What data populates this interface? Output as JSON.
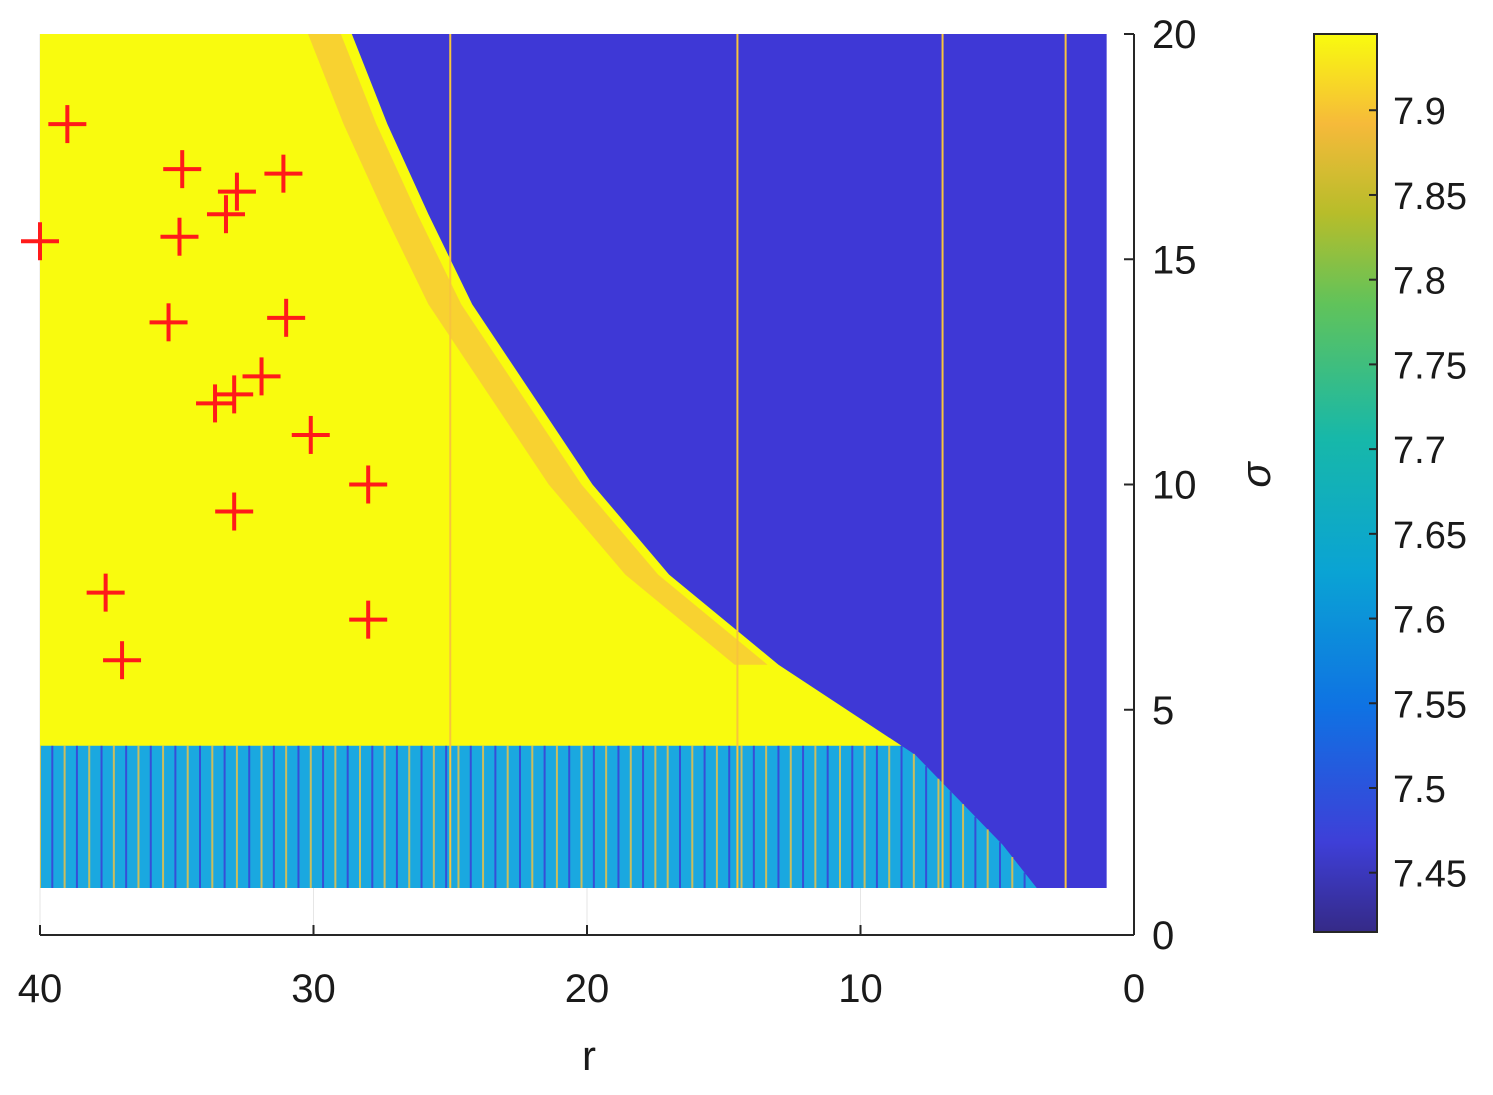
{
  "chart_data": {
    "type": "heatmap",
    "title": "",
    "xlabel": "r",
    "ylabel": "σ",
    "xlim": [
      40,
      0
    ],
    "ylim": [
      0,
      20
    ],
    "x_reversed": true,
    "y_axis_side": "right",
    "x_ticks": [
      40,
      30,
      20,
      10,
      0
    ],
    "y_ticks": [
      0,
      5,
      10,
      15,
      20
    ],
    "data_extent": {
      "r": [
        1,
        40
      ],
      "sigma": [
        1,
        20
      ]
    },
    "colormap": "parula",
    "colorbar": {
      "range": [
        7.415,
        7.945
      ],
      "ticks": [
        "7.45",
        "7.5",
        "7.55",
        "7.6",
        "7.65",
        "7.7",
        "7.75",
        "7.8",
        "7.85",
        "7.9"
      ],
      "position": "right"
    },
    "regions": [
      {
        "name": "high",
        "value": 7.94,
        "description": "yellow region, r large and σ above lower boundary"
      },
      {
        "name": "low",
        "value": 7.43,
        "description": "blue region, right of boundary"
      },
      {
        "name": "transition",
        "value": 7.6,
        "description": "striped band along boundary and for σ below ~4.2"
      }
    ],
    "boundary_curve": [
      {
        "sigma": 20,
        "r": 28.6
      },
      {
        "sigma": 18,
        "r": 27.3
      },
      {
        "sigma": 16,
        "r": 25.8
      },
      {
        "sigma": 14,
        "r": 24.2
      },
      {
        "sigma": 12,
        "r": 22.0
      },
      {
        "sigma": 10,
        "r": 19.8
      },
      {
        "sigma": 8,
        "r": 17.0
      },
      {
        "sigma": 6,
        "r": 13.0
      },
      {
        "sigma": 4,
        "r": 8.0
      },
      {
        "sigma": 2,
        "r": 4.8
      },
      {
        "sigma": 1,
        "r": 3.5
      }
    ],
    "lower_boundary_sigma": 4.2,
    "vertical_lines_r": [
      25,
      14.5,
      7,
      2.5
    ],
    "markers": {
      "symbol": "+",
      "color": "#ff1a1a",
      "points": [
        {
          "r": 39.0,
          "sigma": 18.0
        },
        {
          "r": 34.8,
          "sigma": 17.0
        },
        {
          "r": 31.1,
          "sigma": 16.9
        },
        {
          "r": 32.8,
          "sigma": 16.5
        },
        {
          "r": 33.2,
          "sigma": 16.0
        },
        {
          "r": 40.0,
          "sigma": 15.4
        },
        {
          "r": 34.9,
          "sigma": 15.5
        },
        {
          "r": 35.3,
          "sigma": 13.6
        },
        {
          "r": 31.0,
          "sigma": 13.7
        },
        {
          "r": 31.9,
          "sigma": 12.4
        },
        {
          "r": 32.9,
          "sigma": 12.0
        },
        {
          "r": 33.6,
          "sigma": 11.8
        },
        {
          "r": 30.1,
          "sigma": 11.1
        },
        {
          "r": 28.0,
          "sigma": 10.0
        },
        {
          "r": 32.9,
          "sigma": 9.4
        },
        {
          "r": 37.6,
          "sigma": 7.6
        },
        {
          "r": 28.0,
          "sigma": 7.0
        },
        {
          "r": 37.0,
          "sigma": 6.1
        }
      ]
    },
    "colors": {
      "yellow": "#f9fb0e",
      "orange": "#f7c43c",
      "blue": "#3e38d6",
      "cyan": "#1aa8e0"
    }
  }
}
